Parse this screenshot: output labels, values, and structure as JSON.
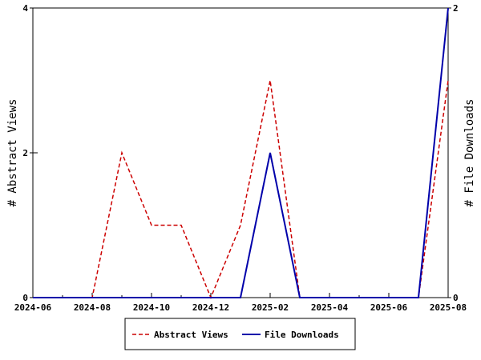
{
  "chart_data": {
    "type": "line",
    "title": "",
    "x": [
      "2024-06",
      "2024-07",
      "2024-08",
      "2024-09",
      "2024-10",
      "2024-11",
      "2024-12",
      "2025-01",
      "2025-02",
      "2025-03",
      "2025-04",
      "2025-05",
      "2025-06",
      "2025-07",
      "2025-08"
    ],
    "xlim": [
      "2024-06",
      "2025-08"
    ],
    "xticks": [
      "2024-06",
      "2024-08",
      "2024-10",
      "2024-12",
      "2025-02",
      "2025-04",
      "2025-06",
      "2025-08"
    ],
    "ylabel_left": "# Abstract Views",
    "ylabel_right": "# File Downloads",
    "ylim_left": [
      0,
      4
    ],
    "ylim_right": [
      0,
      2
    ],
    "yticks_left": [
      "0",
      "2",
      "4"
    ],
    "yticks_right": [
      "0",
      "2"
    ],
    "grid": false,
    "legend_position": "bottom",
    "series": [
      {
        "name": "Abstract Views",
        "axis": "left",
        "color": "#cc0000",
        "dash": "dashed",
        "values": [
          0,
          0,
          0,
          2,
          1,
          1,
          0,
          1,
          3,
          0,
          0,
          0,
          0,
          0,
          3
        ]
      },
      {
        "name": "File Downloads",
        "axis": "right",
        "color": "#0000aa",
        "dash": "solid",
        "values": [
          0,
          0,
          0,
          0,
          0,
          0,
          0,
          0,
          1,
          0,
          0,
          0,
          0,
          0,
          2
        ]
      }
    ]
  }
}
